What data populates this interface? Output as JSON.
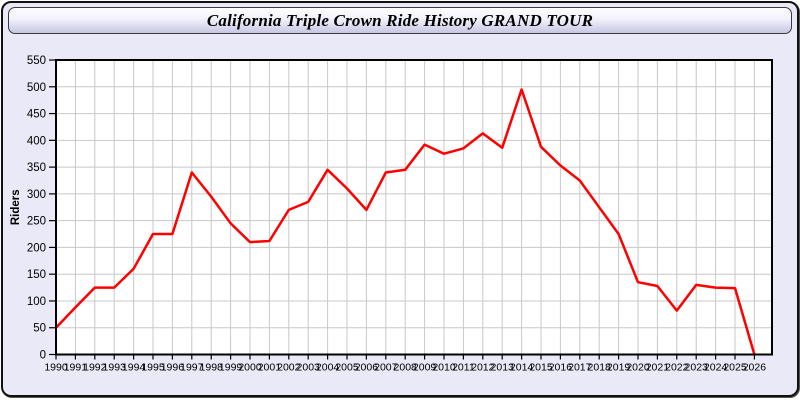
{
  "header": {
    "title": "California Triple Crown Ride History GRAND TOUR"
  },
  "colors": {
    "card_background": "#e9e9f7",
    "plot_background": "#ffffff",
    "gridline": "#c8c8c8",
    "plot_border": "#000000",
    "series_line": "#ff0000",
    "tick_text": "#000000"
  },
  "chart_data": {
    "type": "line",
    "title": "California Triple Crown Ride History GRAND TOUR",
    "xlabel": "",
    "ylabel": "Riders",
    "x": [
      1990,
      1991,
      1992,
      1993,
      1994,
      1995,
      1996,
      1997,
      1998,
      1999,
      2000,
      2001,
      2002,
      2003,
      2004,
      2005,
      2006,
      2007,
      2008,
      2009,
      2010,
      2011,
      2012,
      2013,
      2014,
      2015,
      2016,
      2017,
      2018,
      2019,
      2020,
      2021,
      2022,
      2023,
      2024,
      2025,
      2026
    ],
    "series": [
      {
        "name": "Riders",
        "values": [
          50,
          88,
          125,
          125,
          160,
          225,
          225,
          340,
          295,
          245,
          210,
          212,
          270,
          285,
          345,
          310,
          270,
          340,
          345,
          392,
          375,
          385,
          413,
          386,
          495,
          388,
          353,
          325,
          275,
          225,
          135,
          128,
          82,
          130,
          125,
          124,
          0
        ]
      }
    ],
    "ylim": [
      0,
      550
    ],
    "y_ticks": [
      0,
      50,
      100,
      150,
      200,
      250,
      300,
      350,
      400,
      450,
      500,
      550
    ],
    "grid": true,
    "legend_position": "none"
  }
}
